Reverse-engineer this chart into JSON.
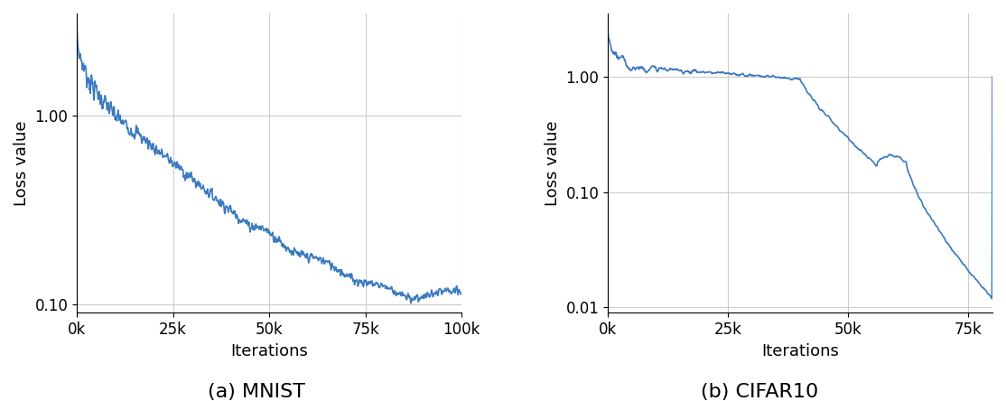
{
  "line_color": "#3a7abf",
  "line_width": 1.2,
  "ylabel": "Loss value",
  "xlabel": "Iterations",
  "background_color": "#ffffff",
  "grid_color": "#cccccc",
  "caption_fontsize": 16,
  "mnist": {
    "title": "(a) MNIST",
    "xlim": [
      0,
      100000
    ],
    "ylim": [
      0.09,
      3.5
    ],
    "xticks": [
      0,
      25000,
      50000,
      75000,
      100000
    ],
    "xticklabels": [
      "0k",
      "25k",
      "50k",
      "75k",
      "100k"
    ],
    "yticks": [
      0.1,
      1.0
    ],
    "yticklabels": [
      "0.10",
      "1.00"
    ]
  },
  "cifar": {
    "title": "(b) CIFAR10",
    "xlim": [
      0,
      80000
    ],
    "ylim": [
      0.009,
      3.5
    ],
    "xticks": [
      0,
      25000,
      50000,
      75000
    ],
    "xticklabels": [
      "0k",
      "25k",
      "50k",
      "75k"
    ],
    "yticks": [
      0.01,
      0.1,
      1.0
    ],
    "yticklabels": [
      "0.01",
      "0.10",
      "1.00"
    ]
  }
}
